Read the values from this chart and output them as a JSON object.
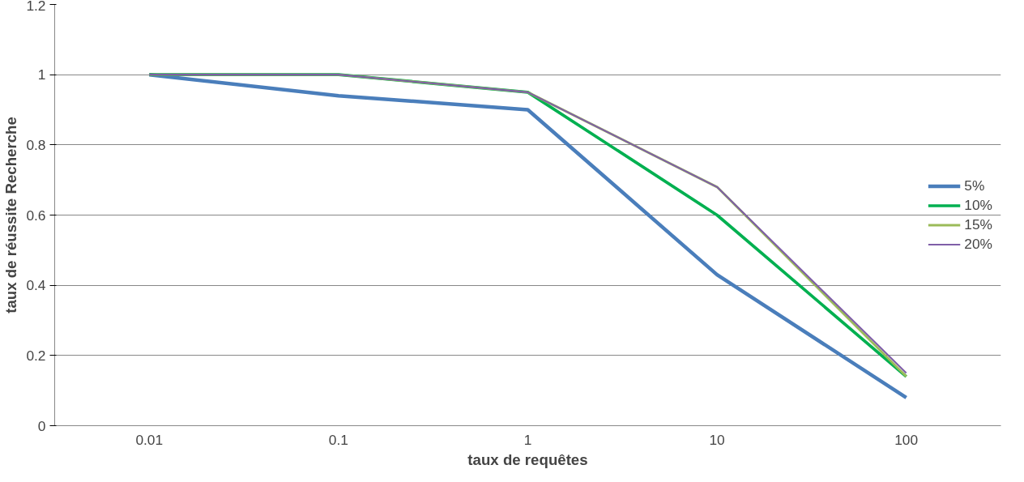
{
  "chart_data": {
    "type": "line",
    "xlabel": "taux de requêtes",
    "ylabel": "taux de réussite Recherche",
    "categories": [
      "0.01",
      "0.1",
      "1",
      "10",
      "100"
    ],
    "series": [
      {
        "name": "5%",
        "color": "#4a7ebb",
        "values": [
          1,
          0.94,
          0.9,
          0.43,
          0.08
        ]
      },
      {
        "name": "10%",
        "color": "#00b050",
        "values": [
          1,
          1,
          0.95,
          0.6,
          0.14
        ]
      },
      {
        "name": "15%",
        "color": "#9bbb59",
        "values": [
          1,
          1,
          0.95,
          0.68,
          0.14
        ]
      },
      {
        "name": "20%",
        "color": "#7f5ea8",
        "values": [
          1,
          1,
          0.95,
          0.68,
          0.15
        ]
      }
    ],
    "ylim": [
      0,
      1.2
    ],
    "yticks": [
      0,
      0.2,
      0.4,
      0.6,
      0.8,
      1,
      1.2
    ],
    "grid": "y",
    "legend": "right"
  }
}
